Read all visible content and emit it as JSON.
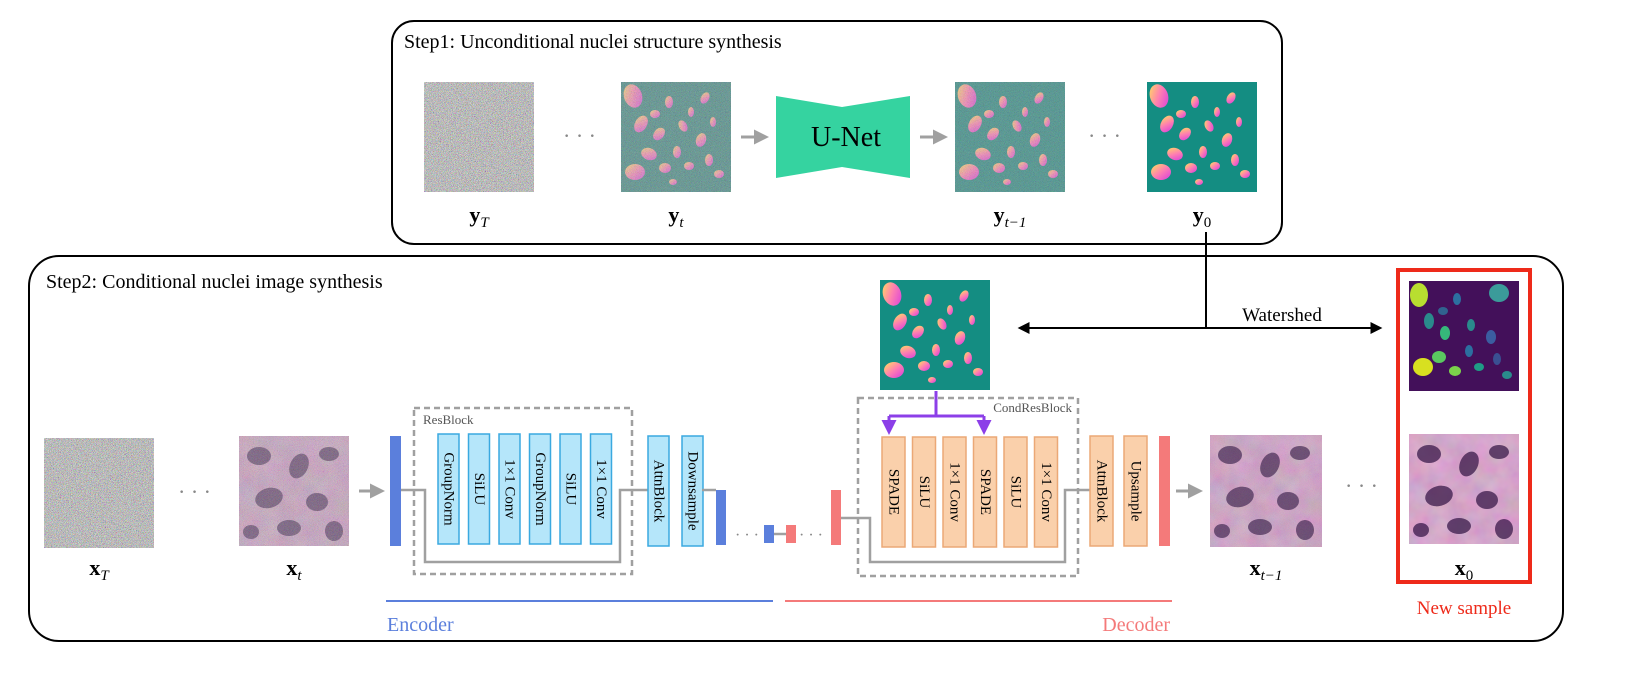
{
  "step1": {
    "title": "Step1: Unconditional nuclei structure synthesis",
    "unet_label": "U-Net",
    "ellipsis": "· · ·",
    "labels": {
      "yT": {
        "base": "y",
        "sub": "T"
      },
      "yt": {
        "base": "y",
        "sub": "t"
      },
      "ytm1": {
        "base": "y",
        "sub": "t−1"
      },
      "y0": {
        "base": "y",
        "sub": "0"
      }
    }
  },
  "step2": {
    "title": "Step2: Conditional nuclei image synthesis",
    "watershed_label": "Watershed",
    "ellipsis": "· · ·",
    "resblock": {
      "title": "ResBlock",
      "layers": [
        "GroupNorm",
        "SiLU",
        "1×1 Conv",
        "GroupNorm",
        "SiLU",
        "1×1 Conv"
      ]
    },
    "encoder_extra": [
      "AttnBlock",
      "Downsample"
    ],
    "condresblock": {
      "title": "CondResBlock",
      "layers": [
        "SPADE",
        "SiLU",
        "1×1 Conv",
        "SPADE",
        "SiLU",
        "1×1 Conv"
      ]
    },
    "decoder_extra": [
      "AttnBlock",
      "Upsample"
    ],
    "encoder_label": "Encoder",
    "decoder_label": "Decoder",
    "new_sample_label": "New sample",
    "labels": {
      "xT": {
        "base": "x",
        "sub": "T"
      },
      "xt": {
        "base": "x",
        "sub": "t"
      },
      "xtm1": {
        "base": "x",
        "sub": "t−1"
      },
      "x0": {
        "base": "x",
        "sub": "0"
      }
    }
  },
  "colors": {
    "unet": "#35d3a0",
    "encoder_block": "#b5e6fa",
    "encoder_border": "#3aa9e0",
    "encoder_bar": "#5b7fdc",
    "decoder_block": "#fad0ab",
    "decoder_border": "#eba876",
    "decoder_bar": "#f47a7a",
    "encoder_text": "#5b7fdc",
    "decoder_text": "#f47a7a",
    "new_sample": "#ee2a1a",
    "purple_arrow": "#8c3fe8",
    "gray_arrow": "#a0a0a0",
    "mask_bg": "#148d82",
    "inst_bg": "#43105a",
    "noise_base": "#6a7570",
    "tissue_base": "#b16d9e"
  }
}
